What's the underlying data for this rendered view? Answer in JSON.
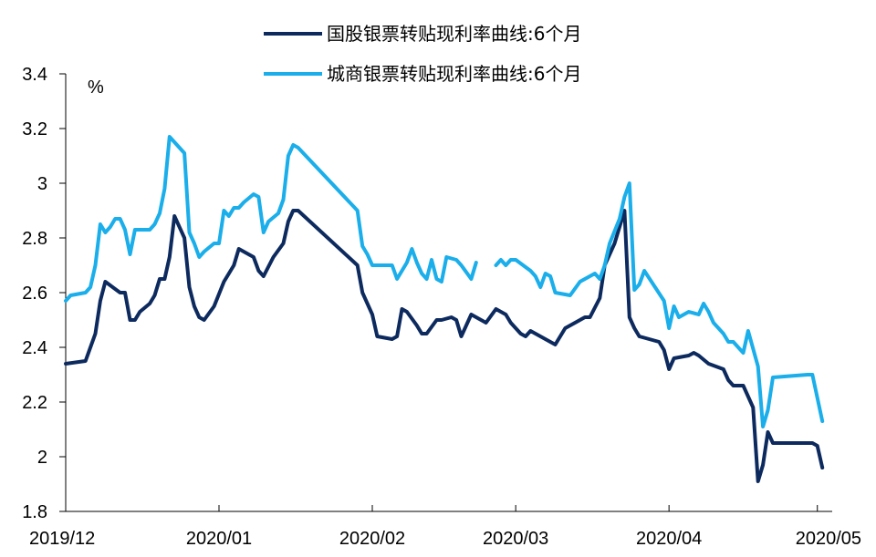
{
  "chart_data": {
    "type": "line",
    "ylabel": "%",
    "ylim": [
      1.8,
      3.4
    ],
    "yticks": [
      "3.4",
      "3.2",
      "3",
      "2.8",
      "2.6",
      "2.4",
      "2.2",
      "2",
      "1.8"
    ],
    "xticks": [
      "2019/12",
      "2020/01",
      "2020/02",
      "2020/03",
      "2020/04",
      "2020/05"
    ],
    "xlim": [
      "2019-12-01",
      "2020-05-04"
    ],
    "legend_position": "top-center",
    "series": [
      {
        "name": "国股银票转贴现利率曲线:6个月",
        "color": "#0d2a5e",
        "points": [
          [
            "2019-12-01",
            2.34
          ],
          [
            "2019-12-05",
            2.35
          ],
          [
            "2019-12-07",
            2.45
          ],
          [
            "2019-12-08",
            2.57
          ],
          [
            "2019-12-09",
            2.64
          ],
          [
            "2019-12-12",
            2.6
          ],
          [
            "2019-12-13",
            2.6
          ],
          [
            "2019-12-14",
            2.5
          ],
          [
            "2019-12-15",
            2.5
          ],
          [
            "2019-12-16",
            2.53
          ],
          [
            "2019-12-18",
            2.56
          ],
          [
            "2019-12-19",
            2.59
          ],
          [
            "2019-12-20",
            2.65
          ],
          [
            "2019-12-21",
            2.65
          ],
          [
            "2019-12-22",
            2.73
          ],
          [
            "2019-12-23",
            2.88
          ],
          [
            "2019-12-25",
            2.8
          ],
          [
            "2019-12-26",
            2.62
          ],
          [
            "2019-12-27",
            2.55
          ],
          [
            "2019-12-28",
            2.51
          ],
          [
            "2019-12-29",
            2.5
          ],
          [
            "2019-12-31",
            2.55
          ],
          [
            "2020-01-02",
            2.64
          ],
          [
            "2020-01-04",
            2.7
          ],
          [
            "2020-01-05",
            2.76
          ],
          [
            "2020-01-08",
            2.73
          ],
          [
            "2020-01-09",
            2.68
          ],
          [
            "2020-01-10",
            2.66
          ],
          [
            "2020-01-12",
            2.73
          ],
          [
            "2020-01-14",
            2.78
          ],
          [
            "2020-01-15",
            2.86
          ],
          [
            "2020-01-16",
            2.9
          ],
          [
            "2020-01-17",
            2.9
          ],
          [
            "2020-01-29",
            2.7
          ],
          [
            "2020-01-30",
            2.6
          ],
          [
            "2020-02-01",
            2.52
          ],
          [
            "2020-02-02",
            2.44
          ],
          [
            "2020-02-05",
            2.43
          ],
          [
            "2020-02-06",
            2.44
          ],
          [
            "2020-02-07",
            2.54
          ],
          [
            "2020-02-08",
            2.53
          ],
          [
            "2020-02-10",
            2.48
          ],
          [
            "2020-02-11",
            2.45
          ],
          [
            "2020-02-12",
            2.45
          ],
          [
            "2020-02-14",
            2.5
          ],
          [
            "2020-02-15",
            2.5
          ],
          [
            "2020-02-17",
            2.51
          ],
          [
            "2020-02-18",
            2.5
          ],
          [
            "2020-02-19",
            2.44
          ],
          [
            "2020-02-21",
            2.52
          ],
          [
            "2020-02-24",
            2.49
          ],
          [
            "2020-02-26",
            2.54
          ],
          [
            "2020-02-28",
            2.52
          ],
          [
            "2020-02-29",
            2.49
          ],
          [
            "2020-03-02",
            2.45
          ],
          [
            "2020-03-03",
            2.44
          ],
          [
            "2020-03-04",
            2.46
          ],
          [
            "2020-03-09",
            2.41
          ],
          [
            "2020-03-11",
            2.47
          ],
          [
            "2020-03-12",
            2.48
          ],
          [
            "2020-03-15",
            2.51
          ],
          [
            "2020-03-16",
            2.51
          ],
          [
            "2020-03-18",
            2.58
          ],
          [
            "2020-03-19",
            2.7
          ],
          [
            "2020-03-21",
            2.78
          ],
          [
            "2020-03-23",
            2.9
          ],
          [
            "2020-03-24",
            2.51
          ],
          [
            "2020-03-25",
            2.47
          ],
          [
            "2020-03-26",
            2.44
          ],
          [
            "2020-03-30",
            2.42
          ],
          [
            "2020-03-31",
            2.39
          ],
          [
            "2020-04-01",
            2.32
          ],
          [
            "2020-04-02",
            2.36
          ],
          [
            "2020-04-05",
            2.37
          ],
          [
            "2020-04-06",
            2.38
          ],
          [
            "2020-04-07",
            2.37
          ],
          [
            "2020-04-09",
            2.34
          ],
          [
            "2020-04-12",
            2.32
          ],
          [
            "2020-04-13",
            2.28
          ],
          [
            "2020-04-14",
            2.26
          ],
          [
            "2020-04-16",
            2.26
          ],
          [
            "2020-04-18",
            2.18
          ],
          [
            "2020-04-19",
            1.91
          ],
          [
            "2020-04-20",
            1.97
          ],
          [
            "2020-04-21",
            2.09
          ],
          [
            "2020-04-22",
            2.05
          ],
          [
            "2020-04-30",
            2.05
          ],
          [
            "2020-05-01",
            2.04
          ],
          [
            "2020-05-02",
            1.96
          ]
        ]
      },
      {
        "name": "城商银票转贴现利率曲线:6个月",
        "color": "#1aaeea",
        "points": [
          [
            "2019-12-01",
            2.57
          ],
          [
            "2019-12-02",
            2.59
          ],
          [
            "2019-12-05",
            2.6
          ],
          [
            "2019-12-06",
            2.62
          ],
          [
            "2019-12-07",
            2.7
          ],
          [
            "2019-12-08",
            2.85
          ],
          [
            "2019-12-09",
            2.82
          ],
          [
            "2019-12-10",
            2.84
          ],
          [
            "2019-12-11",
            2.87
          ],
          [
            "2019-12-12",
            2.87
          ],
          [
            "2019-12-13",
            2.83
          ],
          [
            "2019-12-14",
            2.74
          ],
          [
            "2019-12-15",
            2.83
          ],
          [
            "2019-12-18",
            2.83
          ],
          [
            "2019-12-19",
            2.85
          ],
          [
            "2019-12-20",
            2.89
          ],
          [
            "2019-12-21",
            2.98
          ],
          [
            "2019-12-22",
            3.17
          ],
          [
            "2019-12-25",
            3.11
          ],
          [
            "2019-12-26",
            2.82
          ],
          [
            "2019-12-27",
            2.78
          ],
          [
            "2019-12-28",
            2.73
          ],
          [
            "2019-12-29",
            2.75
          ],
          [
            "2019-12-31",
            2.78
          ],
          [
            "2020-01-01",
            2.78
          ],
          [
            "2020-01-02",
            2.9
          ],
          [
            "2020-01-03",
            2.88
          ],
          [
            "2020-01-04",
            2.91
          ],
          [
            "2020-01-05",
            2.91
          ],
          [
            "2020-01-06",
            2.93
          ],
          [
            "2020-01-08",
            2.96
          ],
          [
            "2020-01-09",
            2.95
          ],
          [
            "2020-01-10",
            2.82
          ],
          [
            "2020-01-11",
            2.86
          ],
          [
            "2020-01-13",
            2.89
          ],
          [
            "2020-01-14",
            2.94
          ],
          [
            "2020-01-15",
            3.1
          ],
          [
            "2020-01-16",
            3.14
          ],
          [
            "2020-01-17",
            3.13
          ],
          [
            "2020-01-29",
            2.9
          ],
          [
            "2020-01-30",
            2.77
          ],
          [
            "2020-01-31",
            2.74
          ],
          [
            "2020-02-01",
            2.7
          ],
          [
            "2020-02-04",
            2.7
          ],
          [
            "2020-02-05",
            2.7
          ],
          [
            "2020-02-06",
            2.65
          ],
          [
            "2020-02-07",
            2.68
          ],
          [
            "2020-02-08",
            2.71
          ],
          [
            "2020-02-09",
            2.76
          ],
          [
            "2020-02-10",
            2.71
          ],
          [
            "2020-02-11",
            2.67
          ],
          [
            "2020-02-12",
            2.65
          ],
          [
            "2020-02-13",
            2.72
          ],
          [
            "2020-02-14",
            2.65
          ],
          [
            "2020-02-15",
            2.64
          ],
          [
            "2020-02-16",
            2.73
          ],
          [
            "2020-02-18",
            2.72
          ],
          [
            "2020-02-19",
            2.7
          ],
          [
            "2020-02-21",
            2.65
          ],
          [
            "2020-02-22",
            2.71
          ],
          null,
          [
            "2020-02-26",
            2.7
          ],
          [
            "2020-02-27",
            2.72
          ],
          [
            "2020-02-28",
            2.7
          ],
          [
            "2020-02-29",
            2.72
          ],
          [
            "2020-03-01",
            2.72
          ],
          [
            "2020-03-04",
            2.68
          ],
          [
            "2020-03-05",
            2.66
          ],
          [
            "2020-03-06",
            2.62
          ],
          [
            "2020-03-07",
            2.67
          ],
          [
            "2020-03-08",
            2.66
          ],
          [
            "2020-03-09",
            2.6
          ],
          [
            "2020-03-12",
            2.59
          ],
          [
            "2020-03-14",
            2.64
          ],
          [
            "2020-03-17",
            2.67
          ],
          [
            "2020-03-18",
            2.65
          ],
          [
            "2020-03-19",
            2.7
          ],
          [
            "2020-03-20",
            2.78
          ],
          [
            "2020-03-22",
            2.87
          ],
          [
            "2020-03-23",
            2.95
          ],
          [
            "2020-03-24",
            3.0
          ],
          [
            "2020-03-25",
            2.61
          ],
          [
            "2020-03-26",
            2.63
          ],
          [
            "2020-03-27",
            2.68
          ],
          [
            "2020-03-31",
            2.57
          ],
          [
            "2020-04-01",
            2.47
          ],
          [
            "2020-04-02",
            2.55
          ],
          [
            "2020-04-03",
            2.51
          ],
          [
            "2020-04-05",
            2.53
          ],
          [
            "2020-04-07",
            2.52
          ],
          [
            "2020-04-08",
            2.56
          ],
          [
            "2020-04-09",
            2.53
          ],
          [
            "2020-04-10",
            2.49
          ],
          [
            "2020-04-12",
            2.45
          ],
          [
            "2020-04-13",
            2.42
          ],
          [
            "2020-04-14",
            2.42
          ],
          [
            "2020-04-15",
            2.4
          ],
          [
            "2020-04-16",
            2.38
          ],
          [
            "2020-04-17",
            2.46
          ],
          [
            "2020-04-19",
            2.33
          ],
          [
            "2020-04-20",
            2.11
          ],
          [
            "2020-04-21",
            2.17
          ],
          [
            "2020-04-22",
            2.29
          ],
          [
            "2020-04-29",
            2.3
          ],
          [
            "2020-04-30",
            2.3
          ],
          [
            "2020-05-02",
            2.13
          ]
        ]
      }
    ]
  }
}
